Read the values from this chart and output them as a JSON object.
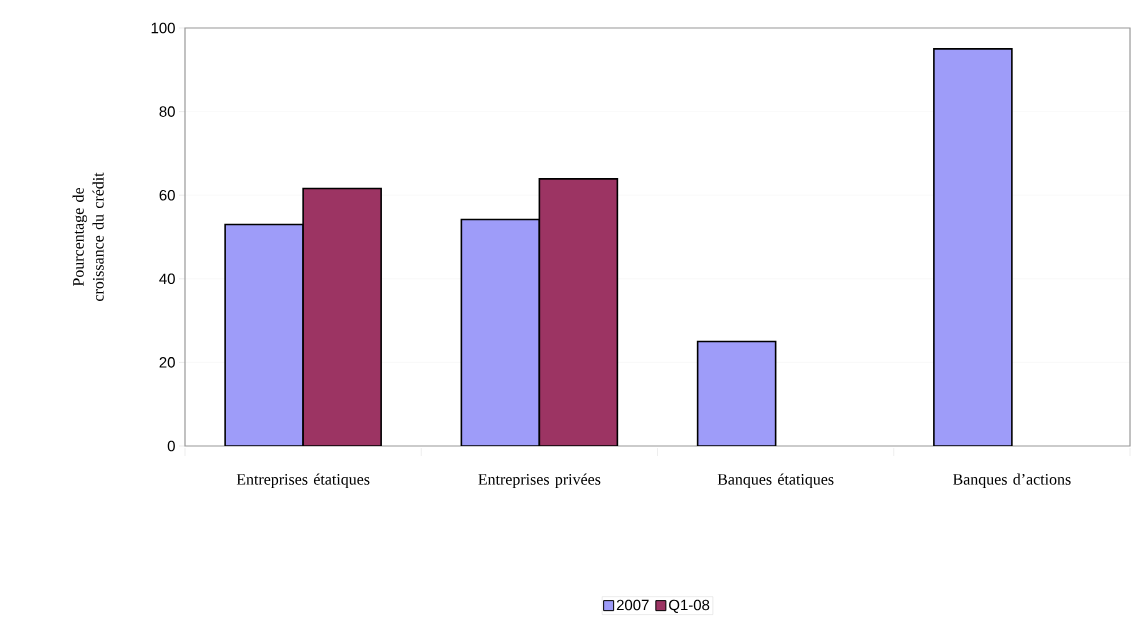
{
  "chart_data": {
    "type": "bar",
    "ylabel": "Pourcentage de croissance du crédit",
    "categories": [
      "Entreprises étatiques",
      "Entreprises privées",
      "Banques étatiques",
      "Banques d’actions"
    ],
    "series": [
      {
        "name": "2007",
        "color": "#9e9cf9",
        "values": [
          53,
          54.2,
          25,
          95
        ]
      },
      {
        "name": "Q1-08",
        "color": "#9c3463",
        "values": [
          61.6,
          63.9,
          null,
          null
        ]
      }
    ],
    "ylim": [
      0,
      100
    ],
    "yticks": [
      0,
      20,
      40,
      60,
      80,
      100
    ],
    "grid": "y",
    "legend": "bottom"
  }
}
